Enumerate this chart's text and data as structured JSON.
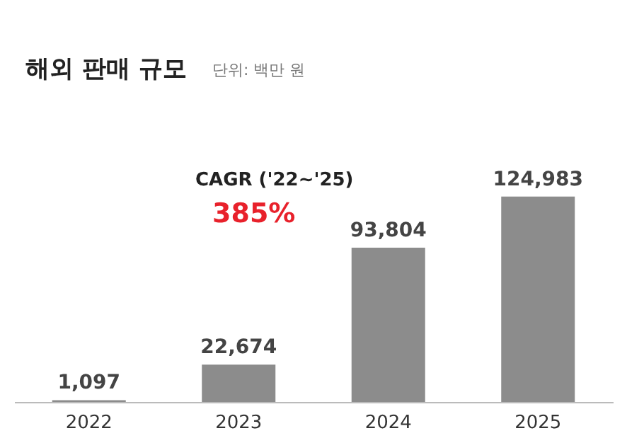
{
  "chart_data": {
    "type": "bar",
    "title": "해외 판매 규모",
    "subtitle": "단위: 백만 원",
    "categories": [
      "2022",
      "2023",
      "2024",
      "2025"
    ],
    "values": [
      1097,
      22674,
      93804,
      124983
    ],
    "color": "#8c8c8c",
    "data_labels": true,
    "value_labels": [
      "1,097",
      "22,674",
      "93,804",
      "124,983"
    ],
    "annotations": [
      "CAGR ('22~'25)",
      "385%"
    ]
  }
}
